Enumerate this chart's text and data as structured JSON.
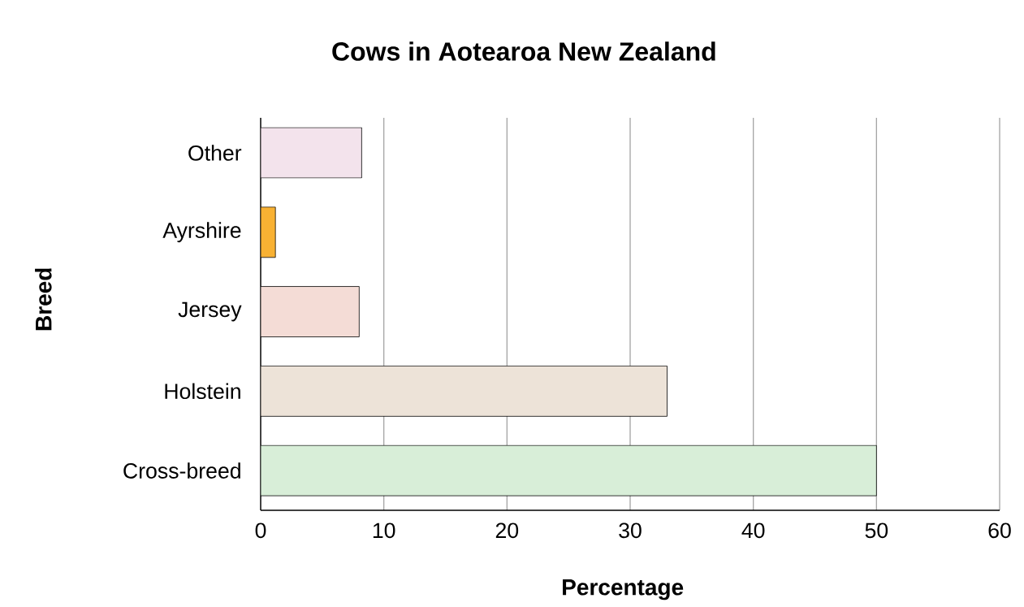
{
  "chart_data": {
    "type": "bar",
    "orientation": "horizontal",
    "title": "Cows in Aotearoa New Zealand",
    "xlabel": "Percentage",
    "ylabel": "Breed",
    "categories": [
      "Other",
      "Ayrshire",
      "Jersey",
      "Holstein",
      "Cross-breed"
    ],
    "values": [
      8.2,
      1.2,
      8,
      33,
      50
    ],
    "colors": [
      "#f3e3ec",
      "#f8b133",
      "#f4dcd6",
      "#ede3d8",
      "#d8eed8"
    ],
    "xlim": [
      0,
      60
    ],
    "xticks": [
      0,
      10,
      20,
      30,
      40,
      50,
      60
    ],
    "grid": "x"
  }
}
